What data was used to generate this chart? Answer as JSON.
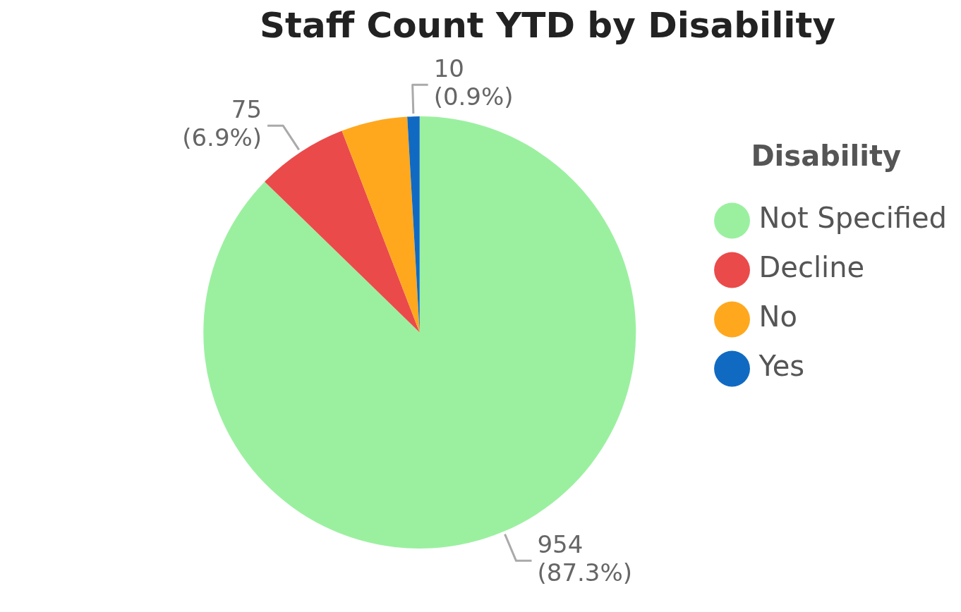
{
  "chart_data": {
    "type": "pie",
    "title": "Staff Count YTD by Disability",
    "legend_title": "Disability",
    "legend": "right",
    "categories": [
      "Not Specified",
      "Decline",
      "No",
      "Yes"
    ],
    "values": [
      954,
      75,
      54,
      10
    ],
    "colors": [
      "#9bf0a0",
      "#eb4a4a",
      "#ffa81e",
      "#116ac2"
    ],
    "value_labels": [
      "954 (87.3%)",
      "75 (6.9%)",
      null,
      "10 (0.9%)"
    ]
  }
}
